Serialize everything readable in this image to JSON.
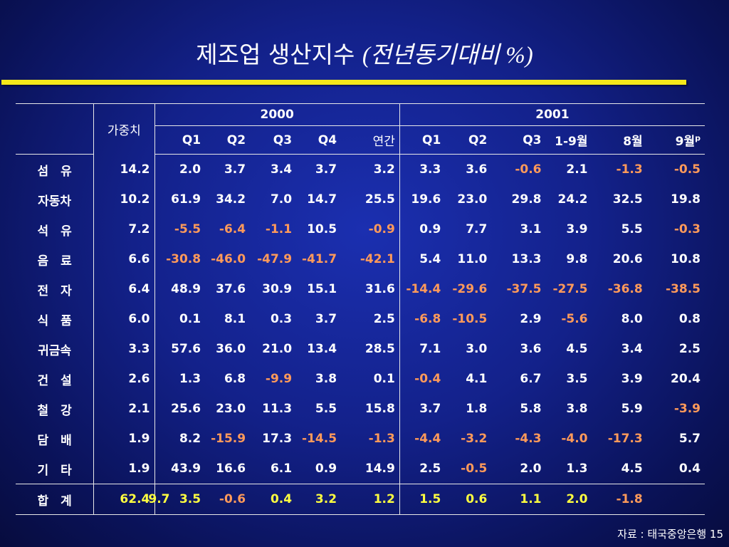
{
  "title": "제조업 생산지수",
  "title_paren": "(전년동기대비 %)",
  "header": {
    "weight": "가중치",
    "year_2000": "2000",
    "year_2001": "2001",
    "cols_2000": [
      "Q1",
      "Q2",
      "Q3",
      "Q4",
      "연간"
    ],
    "cols_2001": [
      "Q1",
      "Q2",
      "Q3",
      "1-9월",
      "8월",
      "9월"
    ],
    "last_sup": "p"
  },
  "rows": [
    {
      "label": "섬　유",
      "weight": "14.2",
      "v2000": [
        "2.0",
        "3.7",
        "3.4",
        "3.7",
        "3.2"
      ],
      "v2001": [
        "3.3",
        "3.6",
        "-0.6",
        "2.1",
        "-1.3",
        "-0.5"
      ]
    },
    {
      "label": "자동차",
      "weight": "10.2",
      "v2000": [
        "61.9",
        "34.2",
        "7.0",
        "14.7",
        "25.5"
      ],
      "v2001": [
        "19.6",
        "23.0",
        "29.8",
        "24.2",
        "32.5",
        "19.8"
      ]
    },
    {
      "label": "석　유",
      "weight": "7.2",
      "v2000": [
        "-5.5",
        "-6.4",
        "-1.1",
        "10.5",
        "-0.9"
      ],
      "v2001": [
        "0.9",
        "7.7",
        "3.1",
        "3.9",
        "5.5",
        "-0.3"
      ]
    },
    {
      "label": "음　료",
      "weight": "6.6",
      "v2000": [
        "-30.8",
        "-46.0",
        "-47.9",
        "-41.7",
        "-42.1"
      ],
      "v2001": [
        "5.4",
        "11.0",
        "13.3",
        "9.8",
        "20.6",
        "10.8"
      ]
    },
    {
      "label": "전　자",
      "weight": "6.4",
      "v2000": [
        "48.9",
        "37.6",
        "30.9",
        "15.1",
        "31.6"
      ],
      "v2001": [
        "-14.4",
        "-29.6",
        "-37.5",
        "-27.5",
        "-36.8",
        "-38.5"
      ]
    },
    {
      "label": "식　품",
      "weight": "6.0",
      "v2000": [
        "0.1",
        "8.1",
        "0.3",
        "3.7",
        "2.5"
      ],
      "v2001": [
        "-6.8",
        "-10.5",
        "2.9",
        "-5.6",
        "8.0",
        "0.8"
      ]
    },
    {
      "label": "귀금속",
      "weight": "3.3",
      "v2000": [
        "57.6",
        "36.0",
        "21.0",
        "13.4",
        "28.5"
      ],
      "v2001": [
        "7.1",
        "3.0",
        "3.6",
        "4.5",
        "3.4",
        "2.5"
      ]
    },
    {
      "label": "건　설",
      "weight": "2.6",
      "v2000": [
        "1.3",
        "6.8",
        "-9.9",
        "3.8",
        "0.1"
      ],
      "v2001": [
        "-0.4",
        "4.1",
        "6.7",
        "3.5",
        "3.9",
        "20.4"
      ]
    },
    {
      "label": "철　강",
      "weight": "2.1",
      "v2000": [
        "25.6",
        "23.0",
        "11.3",
        "5.5",
        "15.8"
      ],
      "v2001": [
        "3.7",
        "1.8",
        "5.8",
        "3.8",
        "5.9",
        "-3.9"
      ]
    },
    {
      "label": "담　배",
      "weight": "1.9",
      "v2000": [
        "8.2",
        "-15.9",
        "17.3",
        "-14.5",
        "-1.3"
      ],
      "v2001": [
        "-4.4",
        "-3.2",
        "-4.3",
        "-4.0",
        "-17.3",
        "5.7"
      ]
    },
    {
      "label": "기　타",
      "weight": "1.9",
      "v2000": [
        "43.9",
        "16.6",
        "6.1",
        "0.9",
        "14.9"
      ],
      "v2001": [
        "2.5",
        "-0.5",
        "2.0",
        "1.3",
        "4.5",
        "0.4"
      ]
    }
  ],
  "total": {
    "label": "합　계",
    "weight": "62.4",
    "q1_2000": "9.7",
    "v2000": [
      "3.5",
      "-0.6",
      "0.4",
      "3.2",
      "1.2"
    ],
    "v2001": [
      "1.5",
      "0.6",
      "1.1",
      "2.0",
      "-1.8",
      ""
    ]
  },
  "footer": "자료 : 태국중앙은행  15",
  "colors": {
    "background": "#13218a",
    "title_rule": "#f5e81a",
    "negative": "#ff9a5a",
    "total_row": "#ffff40"
  }
}
